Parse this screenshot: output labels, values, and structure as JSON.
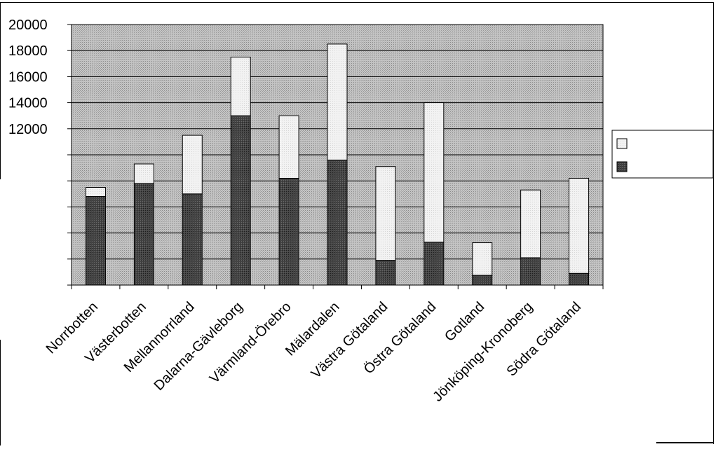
{
  "chart_data": {
    "type": "bar",
    "stacked": true,
    "categories": [
      "Norrbotten",
      "Västerbotten",
      "Mellannorrland",
      "Dalarna-Gävleborg",
      "Värmland-Örebro",
      "Mälardalen",
      "Västra Götaland",
      "Östra Götaland",
      "Gotland",
      "Jönköping-Kronoberg",
      "Södra Götaland"
    ],
    "series": [
      {
        "values": [
          6800,
          7800,
          7000,
          13000,
          8200,
          9600,
          1900,
          3300,
          750,
          2100,
          900
        ],
        "color": "#3c3c3c"
      },
      {
        "values": [
          700,
          1500,
          4500,
          4500,
          4800,
          8900,
          7200,
          10700,
          2500,
          5200,
          7300
        ],
        "color": "#efefef"
      }
    ],
    "ylim": [
      0,
      20000
    ],
    "yticks_labeled": [
      12000,
      14000,
      16000,
      18000,
      20000
    ],
    "ygrid_step": 2000,
    "grid": true,
    "plot_background": "#b9b9b9",
    "legend": {
      "placement": "right",
      "entries": 2
    },
    "title": "",
    "xlabel": "",
    "ylabel": ""
  }
}
